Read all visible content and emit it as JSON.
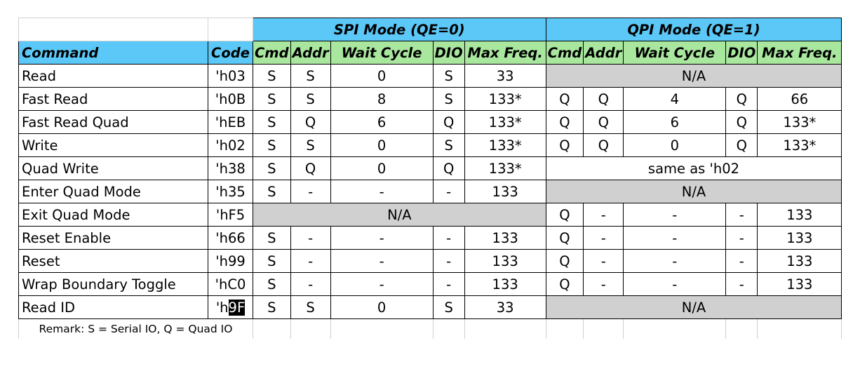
{
  "mode_headers": {
    "spi": "SPI Mode (QE=0)",
    "qpi": "QPI Mode (QE=1)"
  },
  "columns": {
    "command": "Command",
    "code": "Code",
    "cmd": "Cmd",
    "addr": "Addr",
    "wait": "Wait Cycle",
    "dio": "DIO",
    "max_freq": "Max Freq."
  },
  "rows": [
    {
      "command": "Read",
      "code": "'h03",
      "spi": [
        "S",
        "S",
        "0",
        "S",
        "33"
      ],
      "qpi_merged": "N/A"
    },
    {
      "command": "Fast Read",
      "code": "'h0B",
      "spi": [
        "S",
        "S",
        "8",
        "S",
        "133*"
      ],
      "qpi": [
        "Q",
        "Q",
        "4",
        "Q",
        "66"
      ]
    },
    {
      "command": "Fast Read Quad",
      "code": "'hEB",
      "spi": [
        "S",
        "Q",
        "6",
        "Q",
        "133*"
      ],
      "qpi": [
        "Q",
        "Q",
        "6",
        "Q",
        "133*"
      ]
    },
    {
      "command": "Write",
      "code": "'h02",
      "spi": [
        "S",
        "S",
        "0",
        "S",
        "133*"
      ],
      "qpi": [
        "Q",
        "Q",
        "0",
        "Q",
        "133*"
      ]
    },
    {
      "command": "Quad Write",
      "code": "'h38",
      "spi": [
        "S",
        "Q",
        "0",
        "Q",
        "133*"
      ],
      "qpi_merged": "same as 'h02"
    },
    {
      "command": "Enter Quad Mode",
      "code": "'h35",
      "spi": [
        "S",
        "-",
        "-",
        "-",
        "133"
      ],
      "qpi_merged": "N/A"
    },
    {
      "command": "Exit Quad Mode",
      "code": "'hF5",
      "spi_merged": "N/A",
      "qpi": [
        "Q",
        "-",
        "-",
        "-",
        "133"
      ]
    },
    {
      "command": "Reset Enable",
      "code": "'h66",
      "spi": [
        "S",
        "-",
        "-",
        "-",
        "133"
      ],
      "qpi": [
        "Q",
        "-",
        "-",
        "-",
        "133"
      ]
    },
    {
      "command": "Reset",
      "code": "'h99",
      "spi": [
        "S",
        "-",
        "-",
        "-",
        "133"
      ],
      "qpi": [
        "Q",
        "-",
        "-",
        "-",
        "133"
      ]
    },
    {
      "command": "Wrap Boundary Toggle",
      "code": "'hC0",
      "spi": [
        "S",
        "-",
        "-",
        "-",
        "133"
      ],
      "qpi": [
        "Q",
        "-",
        "-",
        "-",
        "133"
      ]
    },
    {
      "command": "Read ID",
      "code_prefix": "'h",
      "code_selected": "9F",
      "spi": [
        "S",
        "S",
        "0",
        "S",
        "33"
      ],
      "qpi_merged": "N/A"
    }
  ],
  "remark": "Remark: S = Serial IO, Q = Quad IO",
  "colors": {
    "header_blue": "#5bc8f7",
    "header_green": "#a9e79f",
    "na_gray": "#d0d0d0",
    "selection": "#000000"
  }
}
